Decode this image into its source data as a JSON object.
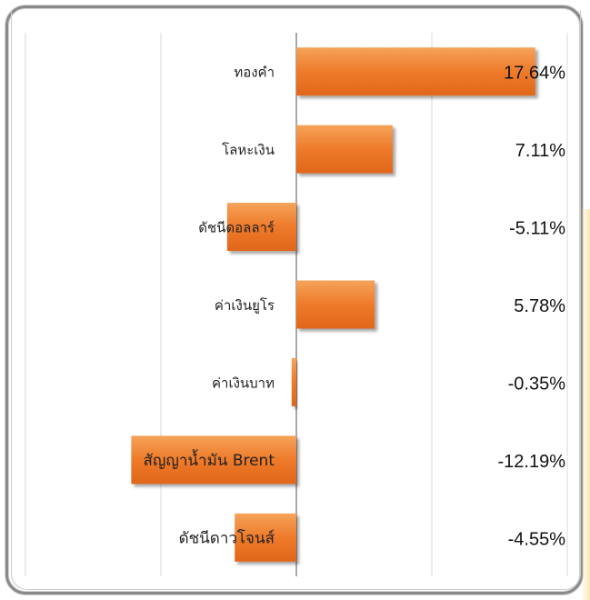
{
  "chart_data": {
    "type": "bar",
    "orientation": "horizontal",
    "categories": [
      "ทองคำ",
      "โลหะเงิน",
      "ดัชนีดอลลาร์",
      "ค่าเงินยูโร",
      "ค่าเงินบาท",
      "สัญญาน้ำมัน Brent",
      "ดัชนีดาวโจนส์"
    ],
    "values": [
      17.64,
      7.11,
      -5.11,
      5.78,
      -0.35,
      -12.19,
      -4.55
    ],
    "value_labels": [
      "17.64%",
      "7.11%",
      "-5.11%",
      "5.78%",
      "-0.35%",
      "-12.19%",
      "-4.55%"
    ],
    "xlim": [
      -20,
      20
    ],
    "grid": true,
    "legend": "none",
    "bar_color": "#ee7a2a"
  }
}
